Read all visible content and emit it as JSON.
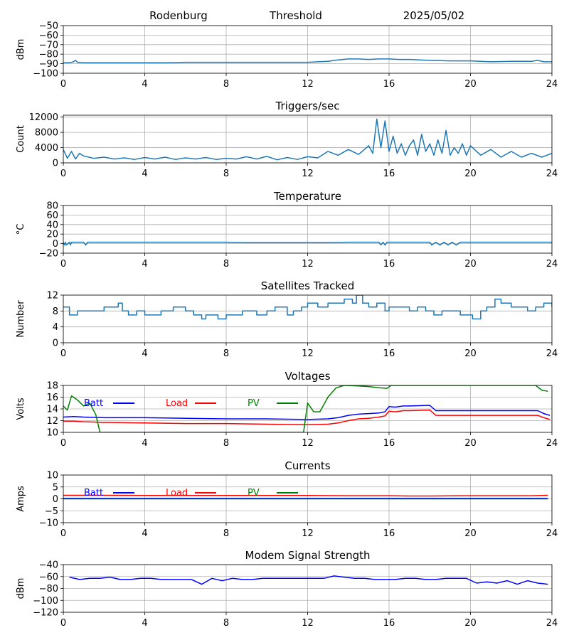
{
  "header": {
    "station": "Rodenburg",
    "label": "Threshold",
    "date": "2025/05/02"
  },
  "chart_data": [
    {
      "type": "line",
      "id": "threshold",
      "title": "",
      "ylabel": "dBm",
      "xlim": [
        0,
        24
      ],
      "xticks": [
        0,
        4,
        8,
        12,
        16,
        20,
        24
      ],
      "ylim": [
        -100,
        -50
      ],
      "yticks": [
        -100,
        -90,
        -80,
        -70,
        -60,
        -50
      ],
      "grid": true,
      "series": [
        {
          "color": "#1f77b4",
          "x": [
            0,
            0.3,
            0.5,
            0.6,
            0.7,
            1,
            2,
            3,
            4,
            5,
            6,
            7,
            8,
            9,
            10,
            11,
            12,
            12.5,
            13,
            13.5,
            14,
            14.5,
            15,
            15.5,
            16,
            16.5,
            17,
            17.5,
            18,
            19,
            20,
            21,
            22,
            23,
            23.3,
            23.6,
            24
          ],
          "y": [
            -89,
            -89,
            -88,
            -86.5,
            -88.5,
            -89,
            -89,
            -89,
            -89,
            -89,
            -88.5,
            -88.5,
            -88.5,
            -88.5,
            -88.5,
            -88.5,
            -88.5,
            -88,
            -87.5,
            -86,
            -85,
            -85,
            -85.5,
            -85,
            -85,
            -85.5,
            -85.5,
            -86,
            -86.5,
            -87,
            -87,
            -88,
            -87.5,
            -87.5,
            -86.5,
            -88,
            -88
          ]
        }
      ]
    },
    {
      "type": "line",
      "id": "triggers",
      "title": "Triggers/sec",
      "ylabel": "Count",
      "xlim": [
        0,
        24
      ],
      "xticks": [
        0,
        4,
        8,
        12,
        16,
        20,
        24
      ],
      "ylim": [
        0,
        12500
      ],
      "yticks": [
        0,
        4000,
        8000,
        12000
      ],
      "grid": true,
      "series": [
        {
          "color": "#1f77b4",
          "x": [
            0,
            0.2,
            0.4,
            0.6,
            0.8,
            1,
            1.5,
            2,
            2.5,
            3,
            3.5,
            4,
            4.5,
            5,
            5.5,
            6,
            6.5,
            7,
            7.5,
            8,
            8.5,
            9,
            9.5,
            10,
            10.5,
            11,
            11.5,
            12,
            12.5,
            13,
            13.5,
            14,
            14.5,
            15,
            15.2,
            15.4,
            15.6,
            15.8,
            16,
            16.2,
            16.4,
            16.6,
            16.8,
            17,
            17.2,
            17.4,
            17.6,
            17.8,
            18,
            18.2,
            18.4,
            18.6,
            18.8,
            19,
            19.2,
            19.4,
            19.6,
            19.8,
            20,
            20.5,
            21,
            21.5,
            22,
            22.5,
            23,
            23.5,
            24
          ],
          "y": [
            3500,
            1200,
            3000,
            1000,
            2500,
            1800,
            1200,
            1500,
            1000,
            1300,
            900,
            1400,
            1000,
            1500,
            900,
            1300,
            1000,
            1400,
            900,
            1200,
            1000,
            1600,
            1000,
            1700,
            800,
            1400,
            900,
            1600,
            1300,
            3000,
            2000,
            3500,
            2200,
            4500,
            2500,
            11500,
            4000,
            11000,
            3000,
            7000,
            2500,
            5000,
            2000,
            4500,
            6000,
            2000,
            7500,
            3000,
            5000,
            2000,
            6000,
            2500,
            8500,
            2000,
            4000,
            2500,
            5000,
            2000,
            4500,
            2000,
            3500,
            1500,
            3000,
            1500,
            2500,
            1500,
            2500
          ]
        }
      ]
    },
    {
      "type": "line",
      "id": "temperature",
      "title": "Temperature",
      "ylabel": "°C",
      "xlim": [
        0,
        24
      ],
      "xticks": [
        0,
        4,
        8,
        12,
        16,
        20,
        24
      ],
      "ylim": [
        -20,
        80
      ],
      "yticks": [
        -20,
        0,
        20,
        40,
        60,
        80
      ],
      "grid": true,
      "series": [
        {
          "color": "#1f77b4",
          "x": [
            0,
            0.05,
            0.1,
            0.15,
            0.3,
            0.35,
            0.4,
            1,
            1.1,
            1.2,
            3,
            8,
            9,
            10,
            11,
            12,
            13,
            14,
            15,
            15.5,
            15.6,
            15.7,
            15.8,
            15.9,
            16,
            17,
            18,
            18.1,
            18.3,
            18.5,
            18.7,
            18.9,
            19.1,
            19.3,
            19.5,
            20,
            22,
            24
          ],
          "y": [
            3,
            -3,
            3,
            -3,
            3,
            -3,
            3,
            3,
            -3,
            3,
            3,
            3,
            2,
            2,
            2,
            2,
            2,
            3,
            3,
            3,
            -3,
            3,
            -3,
            3,
            3,
            3,
            3,
            -3,
            3,
            -3,
            3,
            -3,
            3,
            -3,
            3,
            3,
            3,
            3
          ]
        }
      ]
    },
    {
      "type": "line",
      "id": "satellites",
      "title": "Satellites Tracked",
      "ylabel": "Number",
      "xlim": [
        0,
        24
      ],
      "xticks": [
        0,
        4,
        8,
        12,
        16,
        20,
        24
      ],
      "ylim": [
        0,
        12
      ],
      "yticks": [
        0,
        4,
        8,
        12
      ],
      "grid": true,
      "series": [
        {
          "color": "#1f77b4",
          "step": true,
          "x": [
            0,
            0.3,
            0.7,
            2,
            2.7,
            2.9,
            3.2,
            3.6,
            4,
            4.8,
            5.4,
            6,
            6.4,
            6.8,
            7,
            7.6,
            8,
            8.8,
            9.5,
            10,
            10.4,
            11,
            11.3,
            11.7,
            12,
            12.5,
            13,
            13.8,
            14.2,
            14.4,
            14.7,
            15,
            15.4,
            15.8,
            16,
            16.6,
            17,
            17.4,
            17.8,
            18.2,
            18.6,
            19,
            19.5,
            19.9,
            20.1,
            20.5,
            20.8,
            21.2,
            21.5,
            22,
            22.8,
            23.2,
            23.6,
            24
          ],
          "y": [
            9,
            7,
            8,
            9,
            10,
            8,
            7,
            8,
            7,
            8,
            9,
            8,
            7,
            6,
            7,
            6,
            7,
            8,
            7,
            8,
            9,
            7,
            8,
            9,
            10,
            9,
            10,
            11,
            10,
            12,
            10,
            9,
            10,
            8,
            9,
            9,
            8,
            9,
            8,
            7,
            8,
            8,
            7,
            7,
            6,
            8,
            9,
            11,
            10,
            9,
            8,
            9,
            10,
            9
          ]
        }
      ]
    },
    {
      "type": "line",
      "id": "voltages",
      "title": "Voltages",
      "ylabel": "Volts",
      "xlim": [
        0,
        24
      ],
      "xticks": [
        0,
        4,
        8,
        12,
        16,
        20,
        24
      ],
      "ylim": [
        10,
        18
      ],
      "yticks": [
        10,
        12,
        14,
        16,
        18
      ],
      "grid": true,
      "legend": "top-left",
      "series": [
        {
          "name": "Batt",
          "color": "#0000ff",
          "x": [
            0,
            0.5,
            1,
            2,
            4,
            6,
            8,
            10,
            12,
            13,
            13.5,
            14,
            14.5,
            15,
            15.5,
            15.8,
            16,
            16.3,
            16.7,
            17,
            18,
            18.3,
            19,
            20,
            21,
            22,
            23,
            23.3,
            23.6,
            23.9
          ],
          "y": [
            12.6,
            12.7,
            12.6,
            12.5,
            12.5,
            12.4,
            12.3,
            12.3,
            12.2,
            12.3,
            12.5,
            12.9,
            13.1,
            13.2,
            13.3,
            13.5,
            14.4,
            14.3,
            14.5,
            14.5,
            14.6,
            13.7,
            13.7,
            13.7,
            13.7,
            13.7,
            13.7,
            13.7,
            13.2,
            12.9
          ]
        },
        {
          "name": "Load",
          "color": "#ff0000",
          "x": [
            0,
            0.5,
            1,
            2,
            4,
            6,
            8,
            10,
            12,
            13,
            13.5,
            14,
            14.5,
            15,
            15.5,
            15.8,
            16,
            16.3,
            16.7,
            17,
            18,
            18.3,
            19,
            20,
            21,
            22,
            23,
            23.3,
            23.6,
            23.9
          ],
          "y": [
            11.9,
            11.9,
            11.8,
            11.7,
            11.6,
            11.5,
            11.5,
            11.4,
            11.3,
            11.4,
            11.6,
            12.0,
            12.3,
            12.4,
            12.6,
            12.8,
            13.6,
            13.5,
            13.7,
            13.7,
            13.8,
            12.9,
            12.9,
            12.9,
            12.9,
            12.9,
            12.9,
            12.9,
            12.5,
            12.2
          ]
        },
        {
          "name": "PV",
          "color": "#008000",
          "x": [
            0,
            0.2,
            0.4,
            0.5,
            0.7,
            1,
            1.3,
            1.6,
            1.8,
            11.8,
            12,
            12.3,
            12.6,
            13,
            13.4,
            13.8,
            14.5,
            15,
            15.5,
            15.9,
            16.1,
            23.2,
            23.5,
            23.8
          ],
          "y": [
            14.5,
            13.8,
            16.2,
            16,
            15.5,
            14.5,
            15,
            13,
            10,
            10,
            15,
            13.5,
            13.5,
            16,
            17.6,
            18,
            17.9,
            17.8,
            17.6,
            17.5,
            18,
            18,
            17.2,
            17
          ]
        }
      ]
    },
    {
      "type": "line",
      "id": "currents",
      "title": "Currents",
      "ylabel": "Amps",
      "xlim": [
        0,
        24
      ],
      "xticks": [
        0,
        4,
        8,
        12,
        16,
        20,
        24
      ],
      "ylim": [
        -10,
        10
      ],
      "yticks": [
        -10,
        -5,
        0,
        5,
        10
      ],
      "grid": true,
      "legend": "top-left",
      "series": [
        {
          "name": "Batt",
          "color": "#0000ff",
          "x": [
            0,
            4,
            8,
            12,
            16,
            20,
            23.8
          ],
          "y": [
            0.2,
            0.2,
            0.2,
            0.2,
            0.2,
            0.2,
            0.2
          ]
        },
        {
          "name": "Load",
          "color": "#ff0000",
          "x": [
            0,
            1,
            2,
            4,
            8,
            12,
            14,
            16,
            17,
            18,
            20,
            22,
            23,
            23.8
          ],
          "y": [
            1.5,
            1.5,
            1.5,
            1.4,
            1.4,
            1.4,
            1.3,
            1.3,
            1.2,
            1.2,
            1.3,
            1.3,
            1.3,
            1.5
          ]
        },
        {
          "name": "PV",
          "color": "#008000",
          "x": [
            0,
            4,
            8,
            12,
            16,
            20,
            23.8
          ],
          "y": [
            0,
            0,
            0,
            0,
            0,
            0,
            0
          ]
        }
      ]
    },
    {
      "type": "line",
      "id": "modem",
      "title": "Modem Signal Strength",
      "ylabel": "dBm",
      "xlim": [
        0,
        24
      ],
      "xticks": [
        0,
        4,
        8,
        12,
        16,
        20,
        24
      ],
      "ylim": [
        -120,
        -40
      ],
      "yticks": [
        -120,
        -100,
        -80,
        -60,
        -40
      ],
      "grid": true,
      "series": [
        {
          "color": "#0000ff",
          "x": [
            0.3,
            0.8,
            1.3,
            1.8,
            2.3,
            2.8,
            3.3,
            3.8,
            4.3,
            4.8,
            5.3,
            5.8,
            6.3,
            6.8,
            7.3,
            7.8,
            8.3,
            8.8,
            9.3,
            9.8,
            10.3,
            10.8,
            11.3,
            11.8,
            12.3,
            12.8,
            13.3,
            13.8,
            14.3,
            14.8,
            15.3,
            15.8,
            16.3,
            16.8,
            17.3,
            17.8,
            18.3,
            18.8,
            19.3,
            19.8,
            20.3,
            20.8,
            21.3,
            21.8,
            22.3,
            22.8,
            23.3,
            23.8
          ],
          "y": [
            -61,
            -65,
            -63,
            -63,
            -61,
            -65,
            -65,
            -63,
            -63,
            -65,
            -65,
            -65,
            -65,
            -73,
            -63,
            -67,
            -63,
            -65,
            -65,
            -63,
            -63,
            -63,
            -63,
            -63,
            -63,
            -63,
            -59,
            -61,
            -63,
            -63,
            -65,
            -65,
            -65,
            -63,
            -63,
            -65,
            -65,
            -63,
            -63,
            -63,
            -71,
            -69,
            -71,
            -67,
            -73,
            -67,
            -71,
            -73
          ]
        }
      ]
    }
  ]
}
